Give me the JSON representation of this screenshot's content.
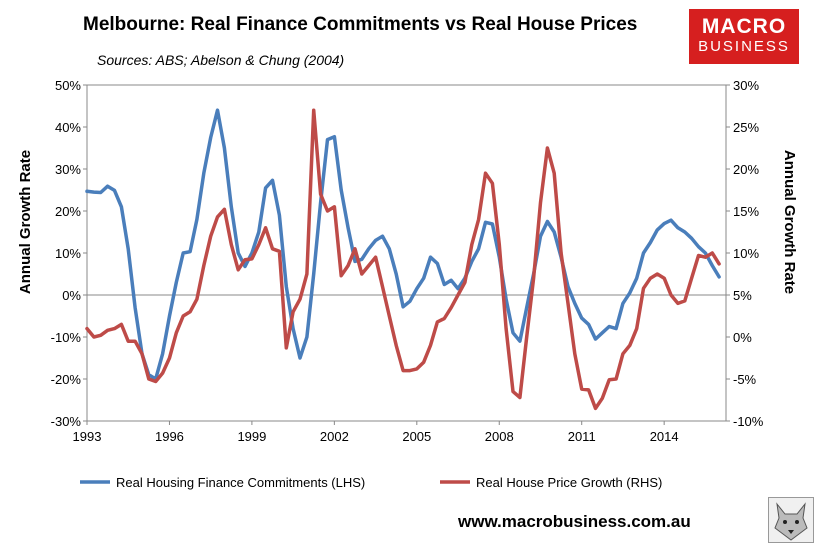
{
  "header": {
    "title": "Melbourne: Real Finance Commitments vs Real House Prices",
    "subtitle": "Sources: ABS; Abelson & Chung (2004)"
  },
  "logo": {
    "line1": "MACRO",
    "line2": "BUSINESS",
    "color": "#d61f1f"
  },
  "footer": {
    "website": "www.macrobusiness.com.au"
  },
  "chart_data": {
    "type": "line",
    "ylabel_left": "Annual Growth Rate",
    "ylabel_right": "Annual Growth Rate",
    "x_ticks": [
      "1993",
      "1996",
      "1999",
      "2002",
      "2005",
      "2008",
      "2011",
      "2014"
    ],
    "xlim": [
      1993,
      2016.25
    ],
    "ylim_left": [
      -30,
      50
    ],
    "ylim_right": [
      -10,
      30
    ],
    "yticks_left": [
      "-30%",
      "-20%",
      "-10%",
      "0%",
      "10%",
      "20%",
      "30%",
      "40%",
      "50%"
    ],
    "yticks_right": [
      "-10%",
      "-5%",
      "0%",
      "5%",
      "10%",
      "15%",
      "20%",
      "25%",
      "30%"
    ],
    "series": [
      {
        "name": "Real Housing Finance Commitments (LHS)",
        "axis": "left",
        "color": "#4a7ebb",
        "points": [
          [
            1993.0,
            24.7
          ],
          [
            1993.25,
            24.5
          ],
          [
            1993.5,
            24.4
          ],
          [
            1993.75,
            25.9
          ],
          [
            1994.0,
            24.9
          ],
          [
            1994.25,
            21.0
          ],
          [
            1994.5,
            11.0
          ],
          [
            1994.75,
            -3.0
          ],
          [
            1995.0,
            -14.0
          ],
          [
            1995.25,
            -19.0
          ],
          [
            1995.5,
            -20.0
          ],
          [
            1995.75,
            -14.0
          ],
          [
            1996.0,
            -5.0
          ],
          [
            1996.25,
            3.0
          ],
          [
            1996.5,
            10.0
          ],
          [
            1996.75,
            10.3
          ],
          [
            1997.0,
            18.0
          ],
          [
            1997.25,
            29.0
          ],
          [
            1997.5,
            37.5
          ],
          [
            1997.75,
            44.0
          ],
          [
            1998.0,
            35.0
          ],
          [
            1998.25,
            21.0
          ],
          [
            1998.5,
            10.0
          ],
          [
            1998.75,
            6.8
          ],
          [
            1999.0,
            10.0
          ],
          [
            1999.25,
            15.0
          ],
          [
            1999.5,
            25.5
          ],
          [
            1999.75,
            27.3
          ],
          [
            2000.0,
            19.0
          ],
          [
            2000.25,
            2.0
          ],
          [
            2000.5,
            -8.0
          ],
          [
            2000.75,
            -15.0
          ],
          [
            2001.0,
            -10.0
          ],
          [
            2001.25,
            5.0
          ],
          [
            2001.5,
            22.0
          ],
          [
            2001.75,
            37.0
          ],
          [
            2002.0,
            37.7
          ],
          [
            2002.25,
            25.0
          ],
          [
            2002.5,
            16.0
          ],
          [
            2002.75,
            8.0
          ],
          [
            2003.0,
            8.5
          ],
          [
            2003.25,
            11.0
          ],
          [
            2003.5,
            13.0
          ],
          [
            2003.75,
            14.0
          ],
          [
            2004.0,
            11.0
          ],
          [
            2004.25,
            5.0
          ],
          [
            2004.5,
            -2.8
          ],
          [
            2004.75,
            -1.5
          ],
          [
            2005.0,
            1.5
          ],
          [
            2005.25,
            4.0
          ],
          [
            2005.5,
            9.0
          ],
          [
            2005.75,
            7.5
          ],
          [
            2006.0,
            2.5
          ],
          [
            2006.25,
            3.5
          ],
          [
            2006.5,
            1.5
          ],
          [
            2006.75,
            4.0
          ],
          [
            2007.0,
            8.0
          ],
          [
            2007.25,
            11.0
          ],
          [
            2007.5,
            17.3
          ],
          [
            2007.75,
            16.9
          ],
          [
            2008.0,
            9.0
          ],
          [
            2008.25,
            -1.0
          ],
          [
            2008.5,
            -9.0
          ],
          [
            2008.75,
            -11.0
          ],
          [
            2009.0,
            -3.0
          ],
          [
            2009.25,
            5.0
          ],
          [
            2009.5,
            14.0
          ],
          [
            2009.75,
            17.5
          ],
          [
            2010.0,
            15.0
          ],
          [
            2010.25,
            9.0
          ],
          [
            2010.5,
            2.0
          ],
          [
            2010.75,
            -2.0
          ],
          [
            2011.0,
            -5.5
          ],
          [
            2011.25,
            -7.0
          ],
          [
            2011.5,
            -10.5
          ],
          [
            2011.75,
            -9.0
          ],
          [
            2012.0,
            -7.5
          ],
          [
            2012.25,
            -8.0
          ],
          [
            2012.5,
            -2.0
          ],
          [
            2012.75,
            0.5
          ],
          [
            2013.0,
            4.0
          ],
          [
            2013.25,
            10.0
          ],
          [
            2013.5,
            12.5
          ],
          [
            2013.75,
            15.5
          ],
          [
            2014.0,
            17.0
          ],
          [
            2014.25,
            17.8
          ],
          [
            2014.5,
            16.0
          ],
          [
            2014.75,
            15.0
          ],
          [
            2015.0,
            13.5
          ],
          [
            2015.25,
            11.5
          ],
          [
            2015.5,
            10.0
          ],
          [
            2015.75,
            7.0
          ],
          [
            2016.0,
            4.3
          ]
        ]
      },
      {
        "name": "Real House Price Growth (RHS)",
        "axis": "right",
        "color": "#be4b48",
        "points": [
          [
            1993.0,
            1.0
          ],
          [
            1993.25,
            0.0
          ],
          [
            1993.5,
            0.2
          ],
          [
            1993.75,
            0.8
          ],
          [
            1994.0,
            1.0
          ],
          [
            1994.25,
            1.5
          ],
          [
            1994.5,
            -0.5
          ],
          [
            1994.75,
            -0.5
          ],
          [
            1995.0,
            -2.0
          ],
          [
            1995.25,
            -5.0
          ],
          [
            1995.5,
            -5.3
          ],
          [
            1995.75,
            -4.3
          ],
          [
            1996.0,
            -2.5
          ],
          [
            1996.25,
            0.5
          ],
          [
            1996.5,
            2.5
          ],
          [
            1996.75,
            3.0
          ],
          [
            1997.0,
            4.5
          ],
          [
            1997.25,
            8.5
          ],
          [
            1997.5,
            12.0
          ],
          [
            1997.75,
            14.3
          ],
          [
            1998.0,
            15.2
          ],
          [
            1998.25,
            11.0
          ],
          [
            1998.5,
            8.0
          ],
          [
            1998.75,
            9.2
          ],
          [
            1999.0,
            9.3
          ],
          [
            1999.25,
            11.0
          ],
          [
            1999.5,
            13.0
          ],
          [
            1999.75,
            10.5
          ],
          [
            2000.0,
            10.2
          ],
          [
            2000.25,
            -1.3
          ],
          [
            2000.5,
            3.0
          ],
          [
            2000.75,
            4.5
          ],
          [
            2001.0,
            7.5
          ],
          [
            2001.25,
            27.0
          ],
          [
            2001.5,
            17.0
          ],
          [
            2001.75,
            15.0
          ],
          [
            2002.0,
            15.5
          ],
          [
            2002.25,
            7.3
          ],
          [
            2002.5,
            8.5
          ],
          [
            2002.75,
            10.5
          ],
          [
            2003.0,
            7.5
          ],
          [
            2003.25,
            8.5
          ],
          [
            2003.5,
            9.5
          ],
          [
            2003.75,
            6.0
          ],
          [
            2004.0,
            2.5
          ],
          [
            2004.25,
            -1.0
          ],
          [
            2004.5,
            -4.0
          ],
          [
            2004.75,
            -4.0
          ],
          [
            2005.0,
            -3.8
          ],
          [
            2005.25,
            -3.0
          ],
          [
            2005.5,
            -1.0
          ],
          [
            2005.75,
            1.8
          ],
          [
            2006.0,
            2.2
          ],
          [
            2006.25,
            3.5
          ],
          [
            2006.5,
            5.0
          ],
          [
            2006.75,
            6.5
          ],
          [
            2007.0,
            11.0
          ],
          [
            2007.25,
            14.0
          ],
          [
            2007.5,
            19.5
          ],
          [
            2007.75,
            18.3
          ],
          [
            2008.0,
            11.0
          ],
          [
            2008.25,
            1.0
          ],
          [
            2008.5,
            -6.5
          ],
          [
            2008.75,
            -7.2
          ],
          [
            2009.0,
            0.0
          ],
          [
            2009.25,
            7.0
          ],
          [
            2009.5,
            16.0
          ],
          [
            2009.75,
            22.5
          ],
          [
            2010.0,
            19.5
          ],
          [
            2010.25,
            10.0
          ],
          [
            2010.5,
            4.0
          ],
          [
            2010.75,
            -2.0
          ],
          [
            2011.0,
            -6.2
          ],
          [
            2011.25,
            -6.3
          ],
          [
            2011.5,
            -8.5
          ],
          [
            2011.75,
            -7.3
          ],
          [
            2012.0,
            -5.1
          ],
          [
            2012.25,
            -5.0
          ],
          [
            2012.5,
            -2.0
          ],
          [
            2012.75,
            -1.0
          ],
          [
            2013.0,
            1.0
          ],
          [
            2013.25,
            5.8
          ],
          [
            2013.5,
            7.0
          ],
          [
            2013.75,
            7.5
          ],
          [
            2014.0,
            7.0
          ],
          [
            2014.25,
            5.0
          ],
          [
            2014.5,
            4.0
          ],
          [
            2014.75,
            4.3
          ],
          [
            2015.0,
            7.0
          ],
          [
            2015.25,
            9.7
          ],
          [
            2015.5,
            9.5
          ],
          [
            2015.75,
            10.0
          ],
          [
            2016.0,
            8.7
          ]
        ]
      }
    ]
  }
}
